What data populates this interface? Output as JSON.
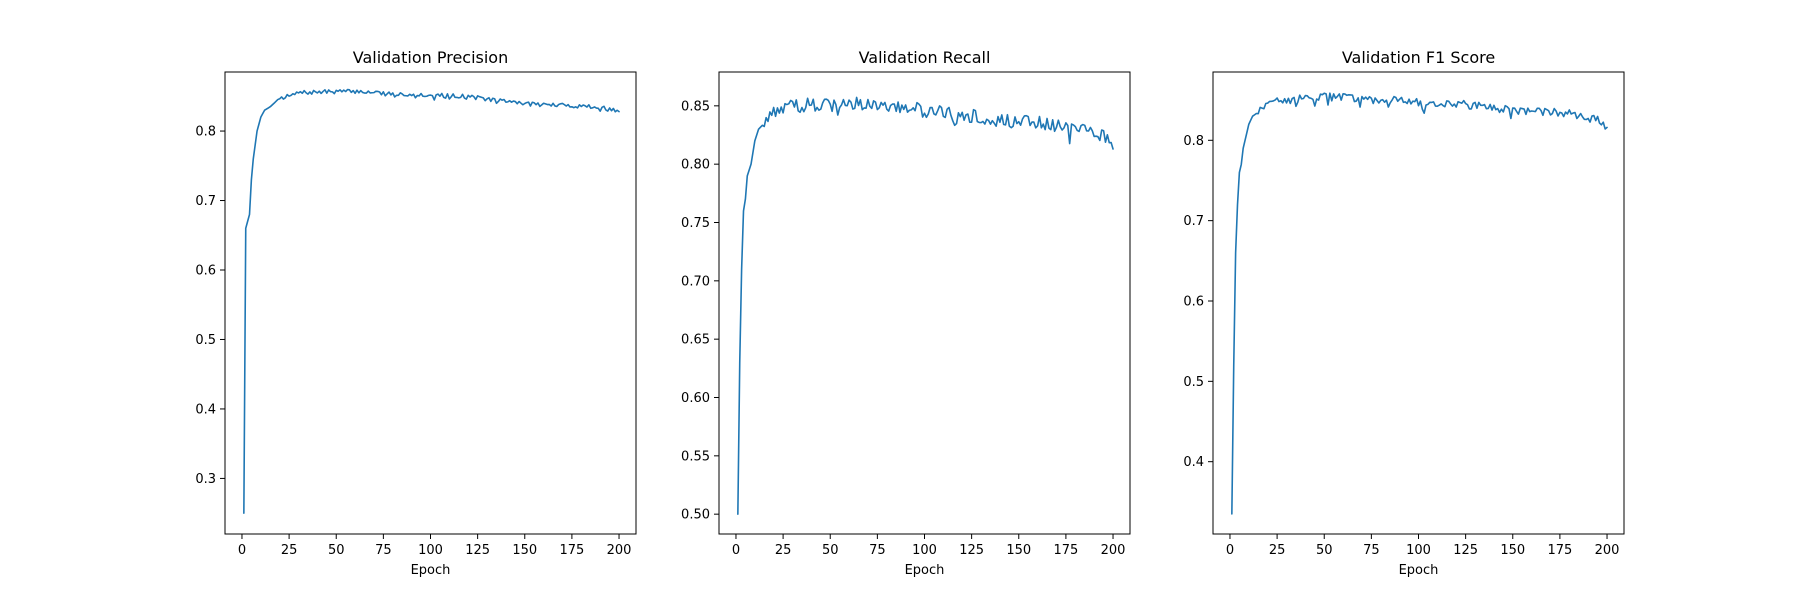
{
  "colors": {
    "line": "#1f77b4",
    "axes": "#000000",
    "background": "#ffffff"
  },
  "chart_data": [
    {
      "type": "line",
      "title": "Validation Precision",
      "xlabel": "Epoch",
      "ylabel": "",
      "xlim": [
        -9,
        209
      ],
      "ylim": [
        0.22,
        0.885
      ],
      "xticks": [
        0,
        25,
        50,
        75,
        100,
        125,
        150,
        175,
        200
      ],
      "yticks": [
        0.3,
        0.4,
        0.5,
        0.6,
        0.7,
        0.8
      ],
      "ytick_labels": [
        "0.3",
        "0.4",
        "0.5",
        "0.6",
        "0.7",
        "0.8"
      ],
      "grid": false,
      "anchors": [
        [
          1,
          0.25
        ],
        [
          2,
          0.66
        ],
        [
          3,
          0.67
        ],
        [
          4,
          0.68
        ],
        [
          5,
          0.73
        ],
        [
          6,
          0.76
        ],
        [
          7,
          0.78
        ],
        [
          8,
          0.8
        ],
        [
          9,
          0.81
        ],
        [
          10,
          0.82
        ],
        [
          12,
          0.83
        ],
        [
          15,
          0.835
        ],
        [
          17,
          0.84
        ],
        [
          20,
          0.848
        ],
        [
          25,
          0.85
        ],
        [
          30,
          0.855
        ],
        [
          40,
          0.856
        ],
        [
          50,
          0.857
        ],
        [
          60,
          0.857
        ],
        [
          70,
          0.856
        ],
        [
          80,
          0.853
        ],
        [
          90,
          0.853
        ],
        [
          100,
          0.852
        ],
        [
          110,
          0.851
        ],
        [
          120,
          0.85
        ],
        [
          130,
          0.846
        ],
        [
          140,
          0.843
        ],
        [
          150,
          0.84
        ],
        [
          160,
          0.838
        ],
        [
          170,
          0.837
        ],
        [
          180,
          0.836
        ],
        [
          190,
          0.834
        ],
        [
          200,
          0.828
        ]
      ],
      "noise": 0.003,
      "noise_start": 20
    },
    {
      "type": "line",
      "title": "Validation Recall",
      "xlabel": "Epoch",
      "ylabel": "",
      "xlim": [
        -9,
        209
      ],
      "ylim": [
        0.483,
        0.879
      ],
      "xticks": [
        0,
        25,
        50,
        75,
        100,
        125,
        150,
        175,
        200
      ],
      "yticks": [
        0.5,
        0.55,
        0.6,
        0.65,
        0.7,
        0.75,
        0.8,
        0.85
      ],
      "ytick_labels": [
        "0.50",
        "0.55",
        "0.60",
        "0.65",
        "0.70",
        "0.75",
        "0.80",
        "0.85"
      ],
      "grid": false,
      "anchors": [
        [
          1,
          0.5
        ],
        [
          2,
          0.63
        ],
        [
          3,
          0.71
        ],
        [
          4,
          0.76
        ],
        [
          5,
          0.77
        ],
        [
          6,
          0.79
        ],
        [
          8,
          0.8
        ],
        [
          10,
          0.82
        ],
        [
          12,
          0.83
        ],
        [
          15,
          0.835
        ],
        [
          18,
          0.84
        ],
        [
          20,
          0.845
        ],
        [
          25,
          0.848
        ],
        [
          30,
          0.85
        ],
        [
          40,
          0.851
        ],
        [
          50,
          0.853
        ],
        [
          60,
          0.853
        ],
        [
          70,
          0.85
        ],
        [
          80,
          0.848
        ],
        [
          90,
          0.848
        ],
        [
          100,
          0.846
        ],
        [
          110,
          0.844
        ],
        [
          120,
          0.842
        ],
        [
          130,
          0.84
        ],
        [
          140,
          0.838
        ],
        [
          150,
          0.836
        ],
        [
          160,
          0.835
        ],
        [
          170,
          0.834
        ],
        [
          180,
          0.832
        ],
        [
          190,
          0.828
        ],
        [
          195,
          0.825
        ],
        [
          200,
          0.815
        ]
      ],
      "noise": 0.006,
      "noise_start": 15
    },
    {
      "type": "line",
      "title": "Validation F1 Score",
      "xlabel": "Epoch",
      "ylabel": "",
      "xlim": [
        -9,
        209
      ],
      "ylim": [
        0.31,
        0.885
      ],
      "xticks": [
        0,
        25,
        50,
        75,
        100,
        125,
        150,
        175,
        200
      ],
      "yticks": [
        0.4,
        0.5,
        0.6,
        0.7,
        0.8
      ],
      "ytick_labels": [
        "0.4",
        "0.5",
        "0.6",
        "0.7",
        "0.8"
      ],
      "grid": false,
      "anchors": [
        [
          1,
          0.335
        ],
        [
          2,
          0.52
        ],
        [
          3,
          0.66
        ],
        [
          4,
          0.72
        ],
        [
          5,
          0.76
        ],
        [
          6,
          0.77
        ],
        [
          7,
          0.79
        ],
        [
          8,
          0.8
        ],
        [
          10,
          0.82
        ],
        [
          12,
          0.83
        ],
        [
          15,
          0.835
        ],
        [
          18,
          0.84
        ],
        [
          20,
          0.845
        ],
        [
          25,
          0.848
        ],
        [
          30,
          0.85
        ],
        [
          40,
          0.852
        ],
        [
          50,
          0.854
        ],
        [
          60,
          0.854
        ],
        [
          70,
          0.851
        ],
        [
          80,
          0.85
        ],
        [
          90,
          0.85
        ],
        [
          100,
          0.848
        ],
        [
          110,
          0.847
        ],
        [
          120,
          0.846
        ],
        [
          130,
          0.843
        ],
        [
          140,
          0.84
        ],
        [
          150,
          0.838
        ],
        [
          160,
          0.836
        ],
        [
          170,
          0.835
        ],
        [
          180,
          0.833
        ],
        [
          190,
          0.828
        ],
        [
          195,
          0.826
        ],
        [
          200,
          0.815
        ]
      ],
      "noise": 0.005,
      "noise_start": 15
    }
  ]
}
